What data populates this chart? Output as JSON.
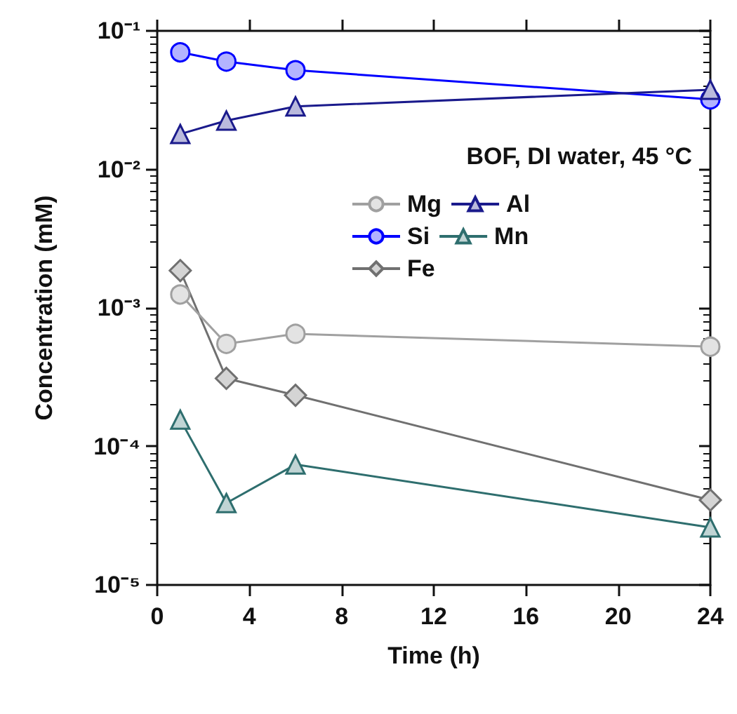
{
  "chart_data": {
    "type": "line",
    "xlabel": "Time (h)",
    "ylabel": "Concentration (mM)",
    "legend_title": "BOF, DI water, 45 °C",
    "x": [
      1,
      3,
      6,
      24
    ],
    "series": [
      {
        "name": "Mg",
        "color": "#a0a0a0",
        "marker": "circle",
        "values": [
          0.00125,
          0.00055,
          0.00065,
          0.000525
        ]
      },
      {
        "name": "Al",
        "color": "#1a1a8c",
        "marker": "triangle",
        "values": [
          0.018,
          0.0225,
          0.0285,
          0.0376
        ]
      },
      {
        "name": "Si",
        "color": "#0000ff",
        "marker": "circle",
        "values": [
          0.07,
          0.06,
          0.052,
          0.032
        ]
      },
      {
        "name": "Mn",
        "color": "#2e6e6e",
        "marker": "triangle",
        "values": [
          0.000156,
          3.9e-05,
          7.4e-05,
          2.6e-05
        ]
      },
      {
        "name": "Fe",
        "color": "#707070",
        "marker": "diamond",
        "values": [
          0.00186,
          0.00031,
          0.000234,
          4.1e-05
        ]
      }
    ],
    "log": "y",
    "xlim": [
      0,
      24
    ],
    "xticks": [
      0,
      4,
      8,
      12,
      16,
      20,
      24
    ],
    "ylim": [
      1e-05,
      0.1
    ],
    "yticks": [
      {
        "value": 1e-05,
        "label": "10⁻⁵"
      },
      {
        "value": 0.0001,
        "label": "10⁻⁴"
      },
      {
        "value": 0.001,
        "label": "10⁻³"
      },
      {
        "value": 0.01,
        "label": "10⁻²"
      },
      {
        "value": 0.1,
        "label": "10⁻¹"
      }
    ],
    "grid": false,
    "legend": "top right",
    "line_style": "solid"
  }
}
